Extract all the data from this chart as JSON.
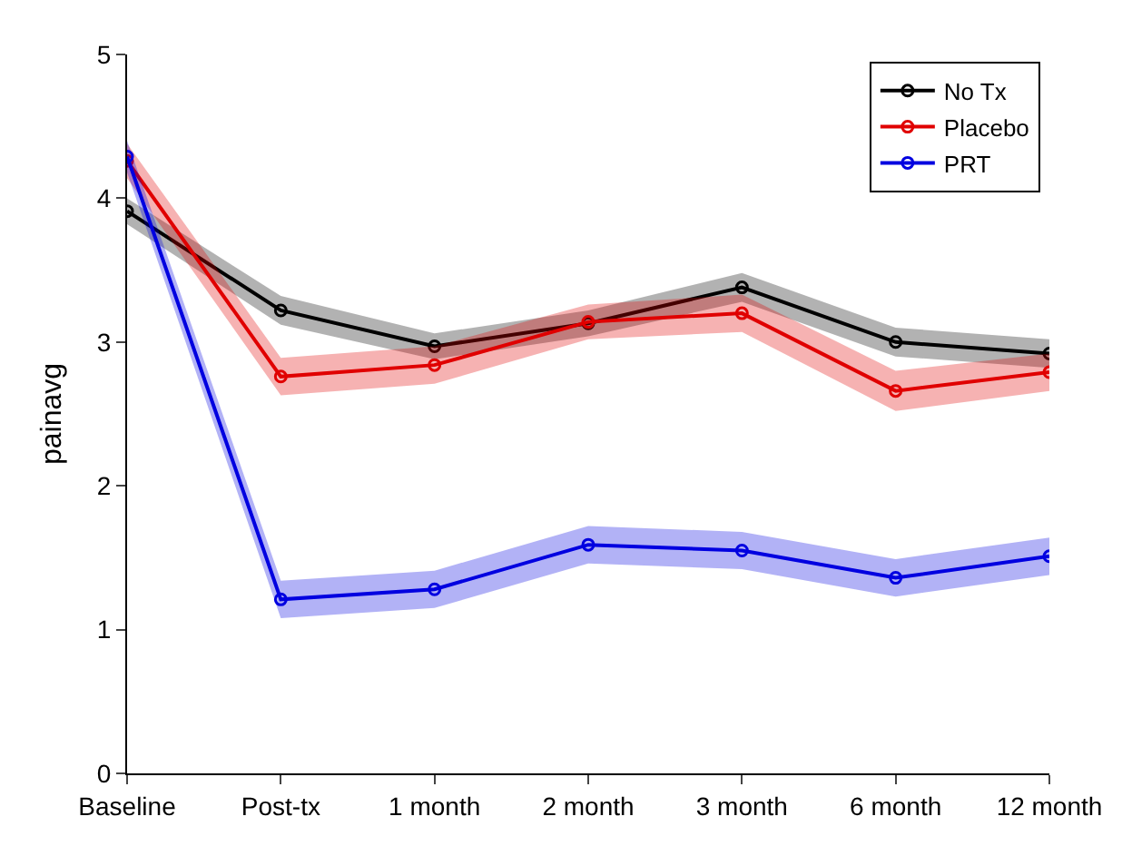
{
  "chart_data": {
    "type": "line",
    "ylabel": "painavg",
    "categories": [
      "Baseline",
      "Post-tx",
      "1 month",
      "2 month",
      "3 month",
      "6 month",
      "12 month"
    ],
    "ylim": [
      0,
      5
    ],
    "yticks": [
      0,
      1,
      2,
      3,
      4,
      5
    ],
    "series": [
      {
        "name": "No Tx",
        "color": "#000000",
        "values": [
          3.91,
          3.22,
          2.97,
          3.13,
          3.38,
          3.0,
          2.92
        ],
        "lower": [
          3.82,
          3.12,
          2.88,
          3.04,
          3.28,
          2.9,
          2.82
        ],
        "upper": [
          4.0,
          3.32,
          3.06,
          3.22,
          3.48,
          3.1,
          3.02
        ]
      },
      {
        "name": "Placebo",
        "color": "#e00000",
        "values": [
          4.26,
          2.76,
          2.84,
          3.14,
          3.2,
          2.66,
          2.79
        ],
        "lower": [
          4.14,
          2.63,
          2.71,
          3.02,
          3.07,
          2.52,
          2.66
        ],
        "upper": [
          4.38,
          2.89,
          2.97,
          3.26,
          3.33,
          2.8,
          2.92
        ]
      },
      {
        "name": "PRT",
        "color": "#0000e0",
        "values": [
          4.29,
          1.21,
          1.28,
          1.59,
          1.55,
          1.36,
          1.51
        ],
        "lower": [
          4.18,
          1.08,
          1.15,
          1.46,
          1.42,
          1.23,
          1.38
        ],
        "upper": [
          4.4,
          1.34,
          1.41,
          1.72,
          1.68,
          1.49,
          1.64
        ]
      }
    ],
    "marker": "circle",
    "line_style": "solid",
    "legend": "top right"
  }
}
